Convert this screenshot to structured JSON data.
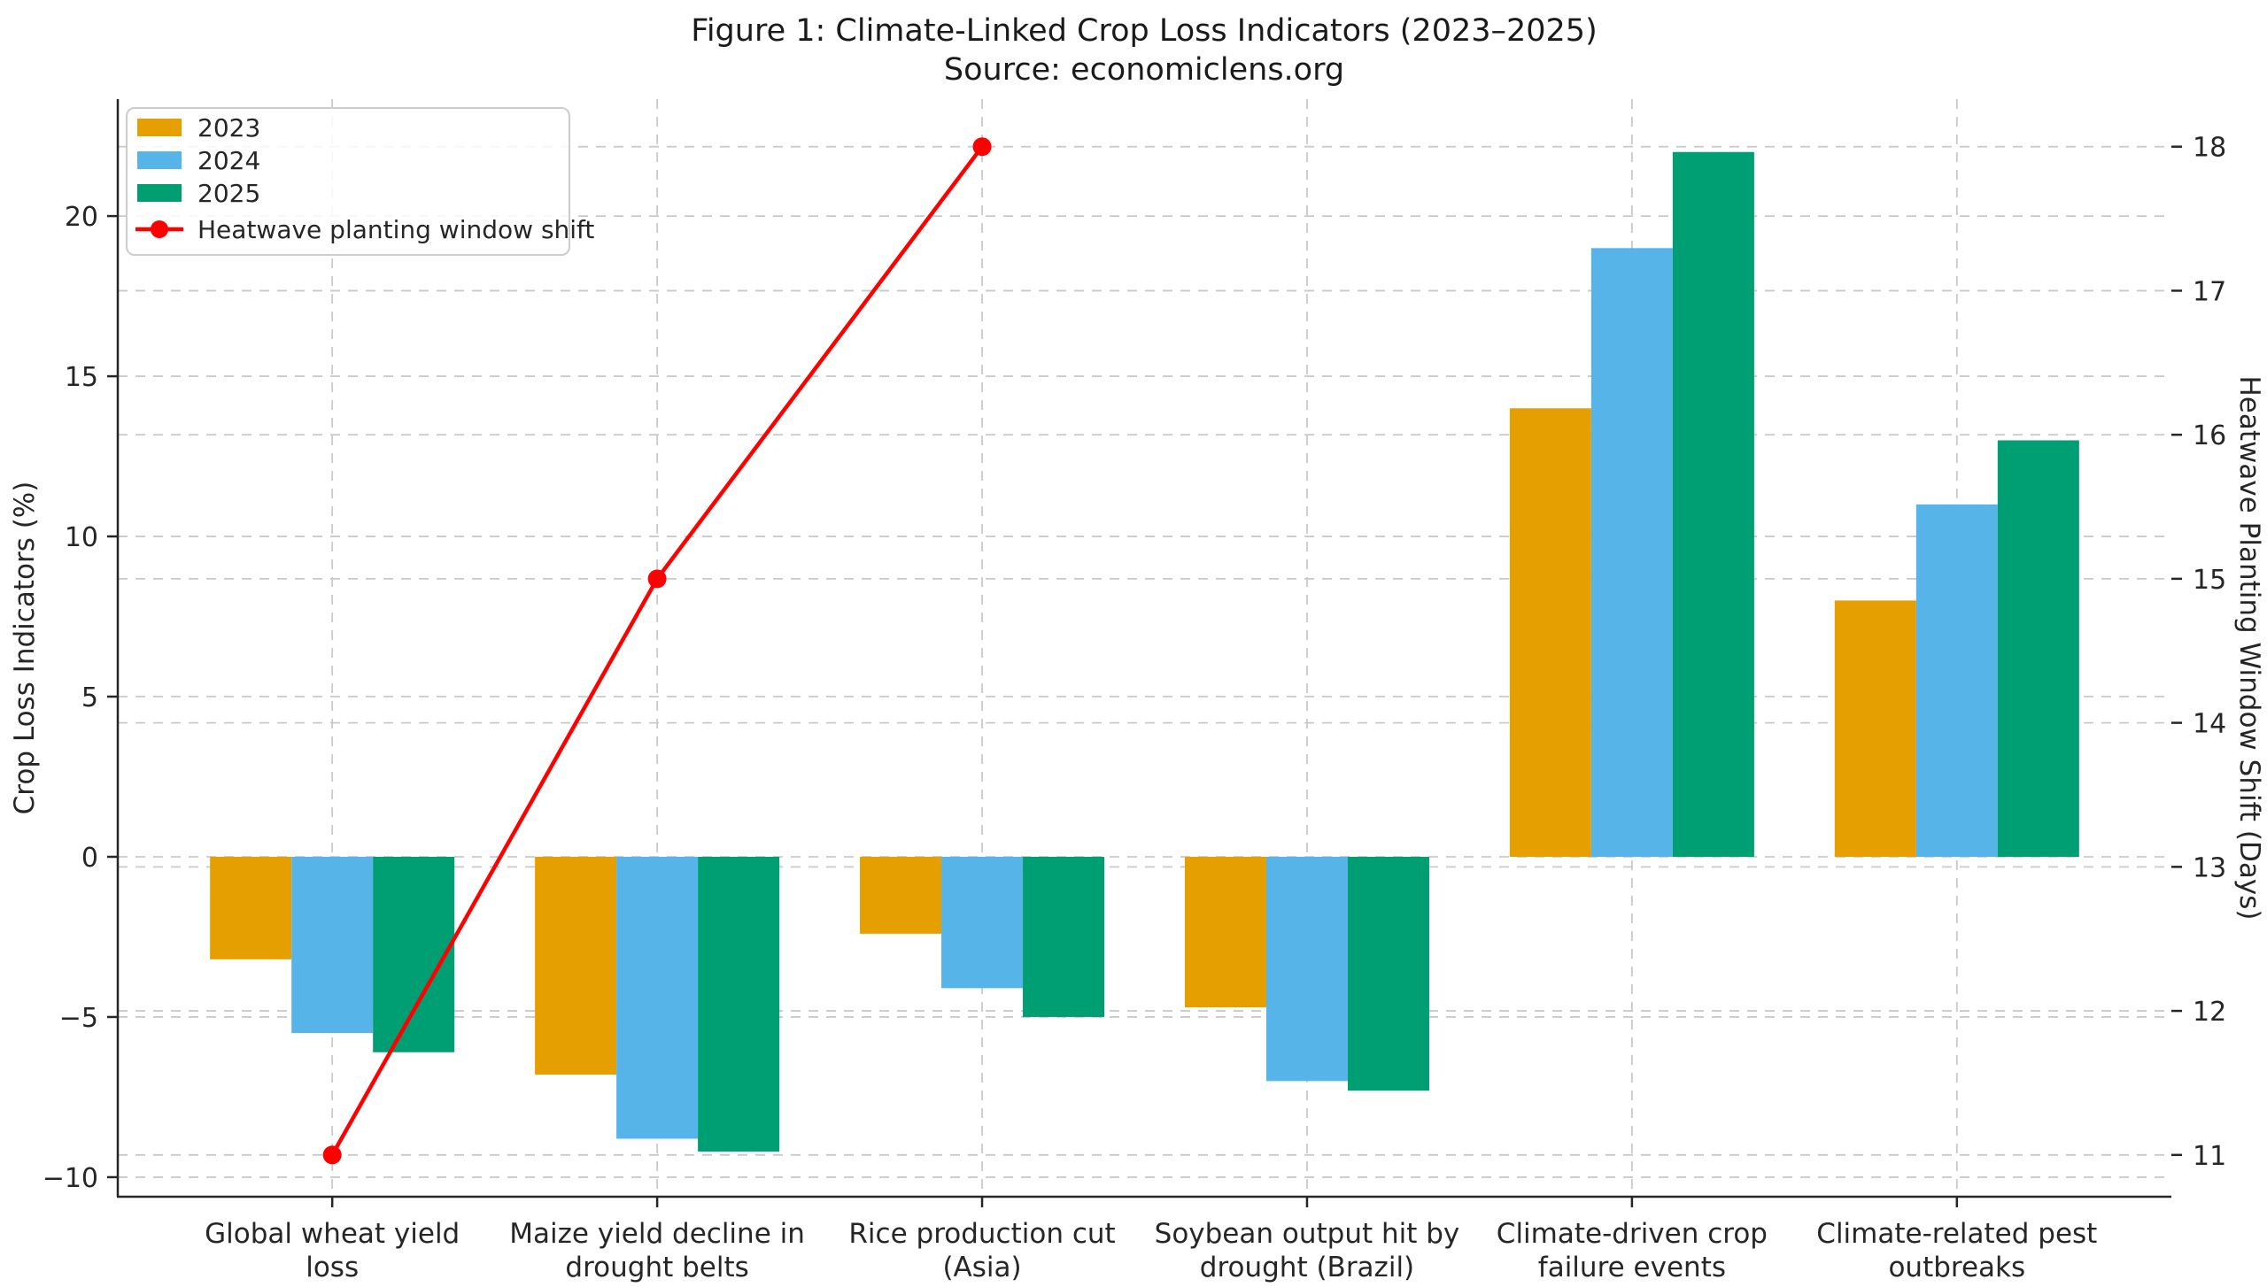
{
  "figure": {
    "title": "Figure 1: Climate-Linked Crop Loss Indicators (2023–2025)",
    "subtitle": "Source: economiclens.org"
  },
  "chart_data": {
    "type": "bar",
    "subtype": "grouped bars with overlaid line on secondary axis",
    "title": "Figure 1: Climate-Linked Crop Loss Indicators (2023–2025)",
    "subtitle": "Source: economiclens.org",
    "categories": [
      "Global wheat yield\nloss",
      "Maize yield decline in\ndrought belts",
      "Rice production cut\n(Asia)",
      "Soybean output hit by\ndrought (Brazil)",
      "Climate-driven crop\nfailure events",
      "Climate-related pest\noutbreaks"
    ],
    "series": [
      {
        "name": "2023",
        "color": "#E69F00",
        "axis": "left",
        "values": [
          -3.2,
          -6.8,
          -2.4,
          -4.7,
          14,
          8
        ]
      },
      {
        "name": "2024",
        "color": "#56B4E9",
        "axis": "left",
        "values": [
          -5.5,
          -8.8,
          -4.1,
          -7.0,
          19,
          11
        ]
      },
      {
        "name": "2025",
        "color": "#009E73",
        "axis": "left",
        "values": [
          -6.1,
          -9.2,
          -5.0,
          -7.3,
          22,
          13
        ]
      }
    ],
    "line_series": {
      "name": "Heatwave planting window shift",
      "color": "#FF0000",
      "axis": "right",
      "values": [
        11,
        15,
        18,
        null,
        null,
        null
      ]
    },
    "ylabel_left": "Crop Loss Indicators (%)",
    "ylabel_right": "Heatwave Planting Window Shift (Days)",
    "yticks_left": [
      -10,
      -5,
      0,
      5,
      10,
      15,
      20
    ],
    "yticks_right": [
      11,
      12,
      13,
      14,
      15,
      16,
      17,
      18
    ],
    "ylim_left": [
      -10.61,
      23.65
    ],
    "ylim_right": [
      10.71,
      18.33
    ],
    "grid": "dashed light-gray horizontal gridlines for both axes plus vertical gridlines at each category",
    "legend_position": "upper left",
    "legend_entries": [
      "2023",
      "2024",
      "2025",
      "Heatwave planting window shift"
    ],
    "colors": {
      "grid": "#c9c9c9",
      "spine": "#262626",
      "text": "#262626",
      "legend_border": "#cccccc",
      "background": "#ffffff"
    }
  }
}
